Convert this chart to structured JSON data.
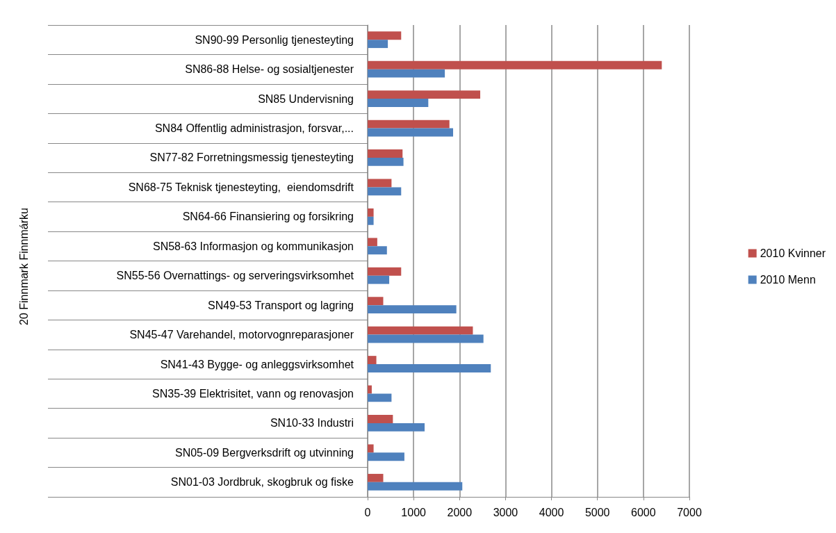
{
  "chart_data": {
    "type": "bar",
    "orientation": "horizontal",
    "annotations": [
      "20 Finnmark Finnmárku"
    ],
    "categories": [
      "SN90-99 Personlig tjenesteyting",
      "SN86-88 Helse- og sosialtjenester",
      "SN85 Undervisning",
      "SN84 Offentlig administrasjon, forsvar,...",
      "SN77-82 Forretningsmessig tjenesteyting",
      "SN68-75 Teknisk tjenesteyting,  eiendomsdrift",
      "SN64-66 Finansiering og forsikring",
      "SN58-63 Informasjon og kommunikasjon",
      "SN55-56 Overnattings- og serveringsvirksomhet",
      "SN49-53 Transport og lagring",
      "SN45-47 Varehandel, motorvognreparasjoner",
      "SN41-43 Bygge- og anleggsvirksomhet",
      "SN35-39 Elektrisitet, vann og renovasjon",
      "SN10-33 Industri",
      "SN05-09 Bergverksdrift og utvinning",
      "SN01-03 Jordbruk, skogbruk og fiske"
    ],
    "series": [
      {
        "name": "2010 Kvinner",
        "color": "#c0504d",
        "values": [
          730,
          6400,
          2450,
          1780,
          760,
          520,
          130,
          210,
          730,
          340,
          2290,
          190,
          90,
          550,
          130,
          340
        ]
      },
      {
        "name": "2010 Menn",
        "color": "#4f81bd",
        "values": [
          440,
          1680,
          1320,
          1860,
          780,
          730,
          130,
          420,
          470,
          1930,
          2520,
          2680,
          520,
          1240,
          800,
          2060
        ]
      }
    ],
    "xlim": [
      0,
      7000
    ],
    "xticks": [
      0,
      1000,
      2000,
      3000,
      4000,
      5000,
      6000,
      7000
    ],
    "grid": "x",
    "legend": "right"
  }
}
